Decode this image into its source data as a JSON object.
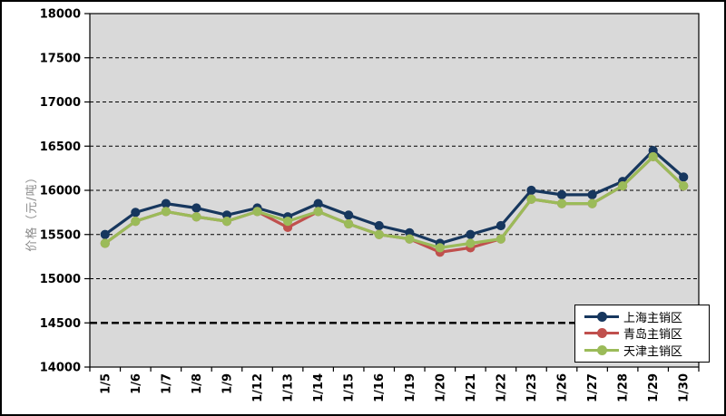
{
  "chart": {
    "y_axis_title": "价格（元/吨）",
    "background": "#FFFFFF",
    "plot_background": "#D9D9D9",
    "border_color": "#000000",
    "gridline_color": "#000000"
  },
  "chart_data": {
    "type": "line",
    "title": "",
    "xlabel": "",
    "ylabel": "价格（元/吨）",
    "categories": [
      "1/5",
      "1/6",
      "1/7",
      "1/8",
      "1/9",
      "1/12",
      "1/13",
      "1/14",
      "1/15",
      "1/16",
      "1/19",
      "1/20",
      "1/21",
      "1/22",
      "1/23",
      "1/26",
      "1/27",
      "1/28",
      "1/29",
      "1/30"
    ],
    "series": [
      {
        "name": "上海主销区",
        "color": "#17375E",
        "marker": "circle",
        "values": [
          15500,
          15750,
          15850,
          15800,
          15720,
          15800,
          15700,
          15850,
          15720,
          15600,
          15520,
          15400,
          15500,
          15600,
          16000,
          15950,
          15950,
          16100,
          16450,
          16150
        ]
      },
      {
        "name": "青岛主销区",
        "color": "#C0504D",
        "marker": "circle",
        "values": [
          15400,
          15650,
          15760,
          15700,
          15650,
          15760,
          15580,
          15760,
          15620,
          15500,
          15450,
          15300,
          15350,
          15450,
          15900,
          15850,
          15850,
          16050,
          16380,
          16050
        ]
      },
      {
        "name": "天津主销区",
        "color": "#9BBB59",
        "marker": "circle",
        "values": [
          15400,
          15650,
          15760,
          15700,
          15650,
          15760,
          15650,
          15760,
          15620,
          15500,
          15450,
          15350,
          15400,
          15450,
          15900,
          15850,
          15850,
          16050,
          16380,
          16050
        ]
      }
    ],
    "ylim": [
      14000,
      18000
    ],
    "yticks": [
      14000,
      14500,
      15000,
      15500,
      16000,
      16500,
      17000,
      17500,
      18000
    ],
    "grid": "horizontal-dashed",
    "emphasized_gridline": 14500,
    "legend_position": "inside-bottom-right",
    "x_label_rotation": -90
  }
}
